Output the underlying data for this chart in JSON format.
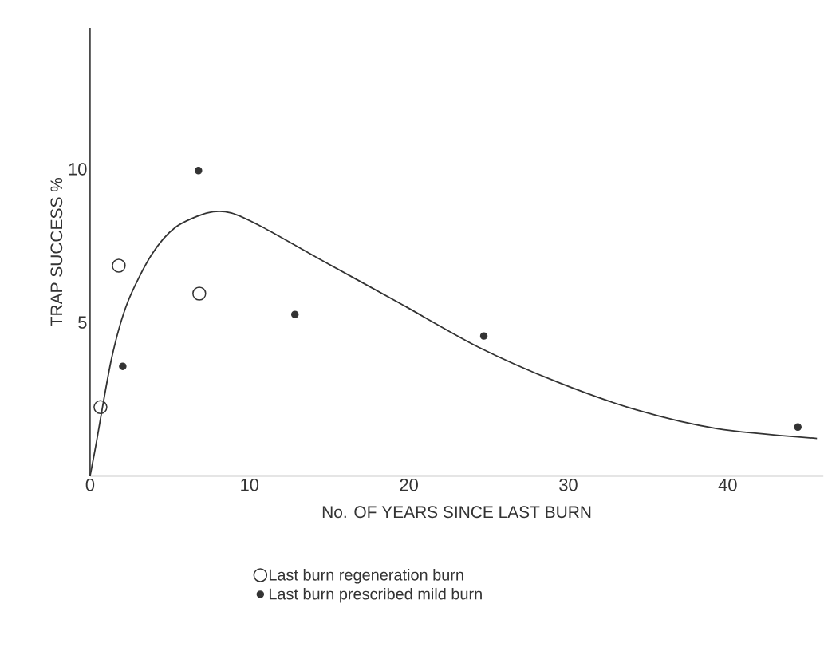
{
  "chart_data": {
    "type": "scatter",
    "xlabel": "No. OF YEARS SINCE LAST BURN",
    "ylabel": "TRAP SUCCESS %",
    "xlim": [
      0,
      46
    ],
    "ylim": [
      0,
      14.6
    ],
    "xticks": [
      0,
      10,
      20,
      30,
      40
    ],
    "yticks": [
      5,
      10
    ],
    "legend": "bottom",
    "series": [
      {
        "type": "line",
        "color": "#333333",
        "marker": "none",
        "x": [
          0,
          0.35,
          1.35,
          2.35,
          3.85,
          5.35,
          7.35,
          8.85,
          10.85,
          14.35,
          19.35,
          24.35,
          29.35,
          34.35,
          39.35,
          45.6
        ],
        "values": [
          0,
          0.96,
          3.83,
          5.65,
          7.2,
          8.1,
          8.57,
          8.57,
          8.1,
          7.08,
          5.65,
          4.2,
          3.05,
          2.14,
          1.54,
          1.22
        ]
      },
      {
        "name": "Last burn regeneration burn",
        "color": "#333333",
        "marker": "circle",
        "x": [
          0.65,
          1.8,
          6.85
        ],
        "values": [
          2.24,
          6.85,
          5.94
        ]
      },
      {
        "name": "Last burn prescribed mild burn",
        "color": "#333333",
        "marker": "circle",
        "x": [
          2.05,
          6.8,
          12.85,
          24.7,
          44.4
        ],
        "values": [
          3.57,
          9.95,
          5.26,
          4.56,
          1.59
        ]
      }
    ]
  }
}
